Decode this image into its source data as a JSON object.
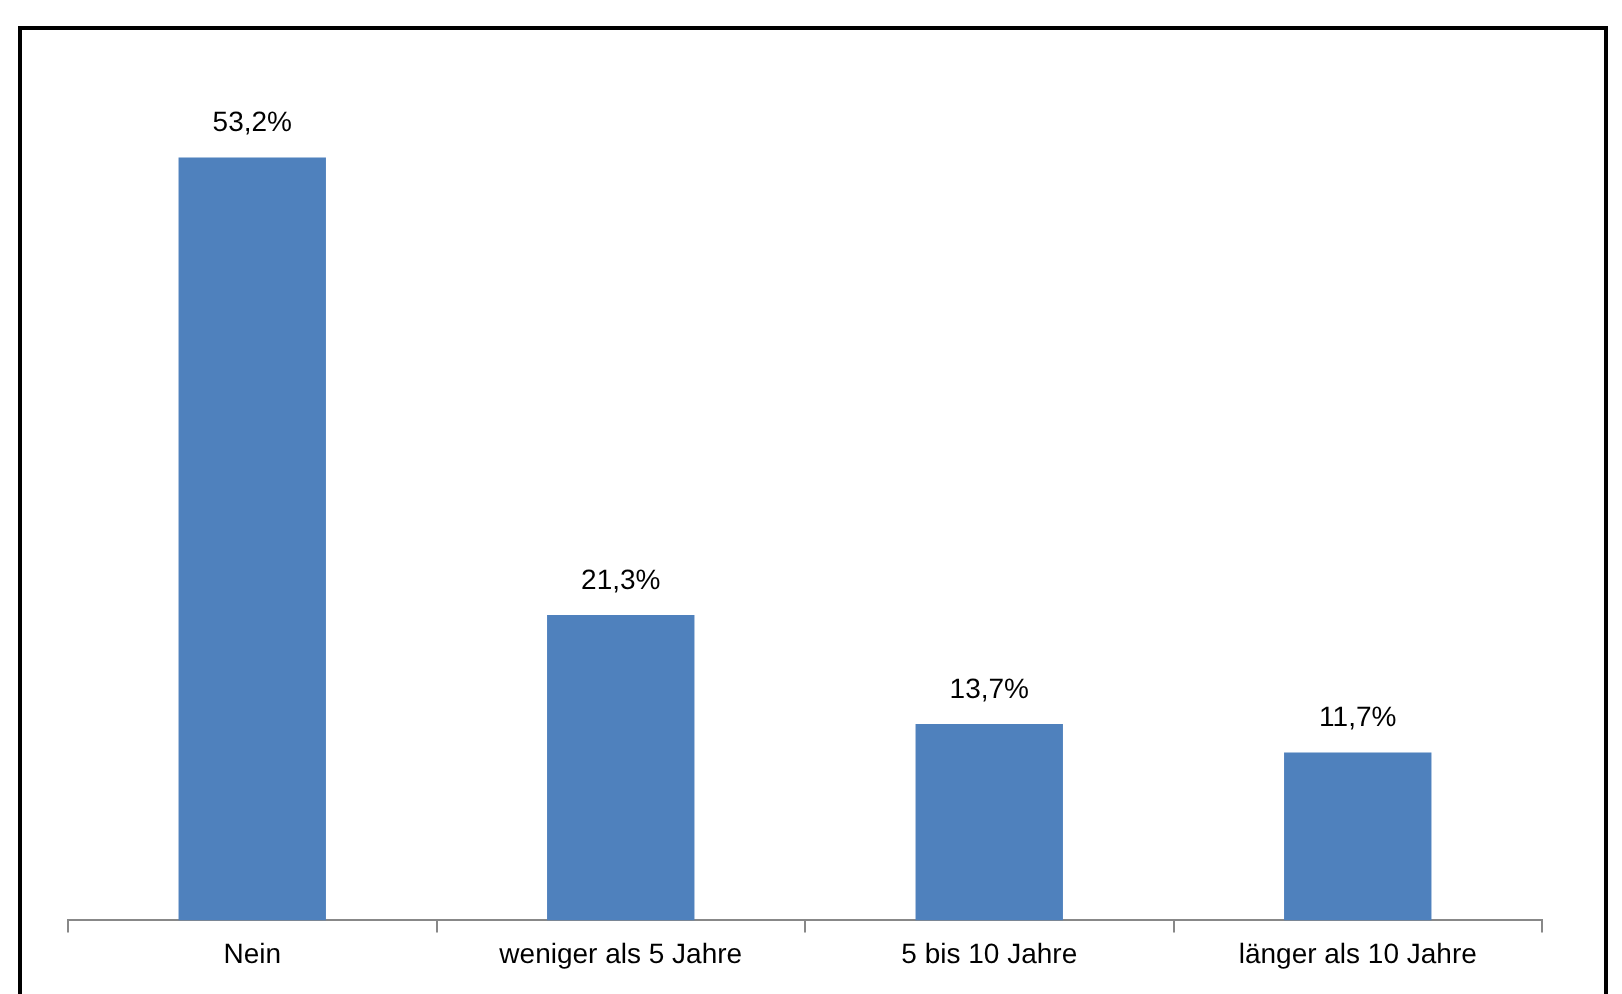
{
  "chart_data": {
    "type": "bar",
    "categories": [
      "Nein",
      "weniger als 5 Jahre",
      "5 bis 10 Jahre",
      "länger als 10 Jahre"
    ],
    "values": [
      53.2,
      21.3,
      13.7,
      11.7
    ],
    "value_labels": [
      "53,2%",
      "21,3%",
      "13,7%",
      "11,7%"
    ],
    "color": "#4f81bd",
    "grid": false,
    "legend": false,
    "tick_labels": "x"
  }
}
